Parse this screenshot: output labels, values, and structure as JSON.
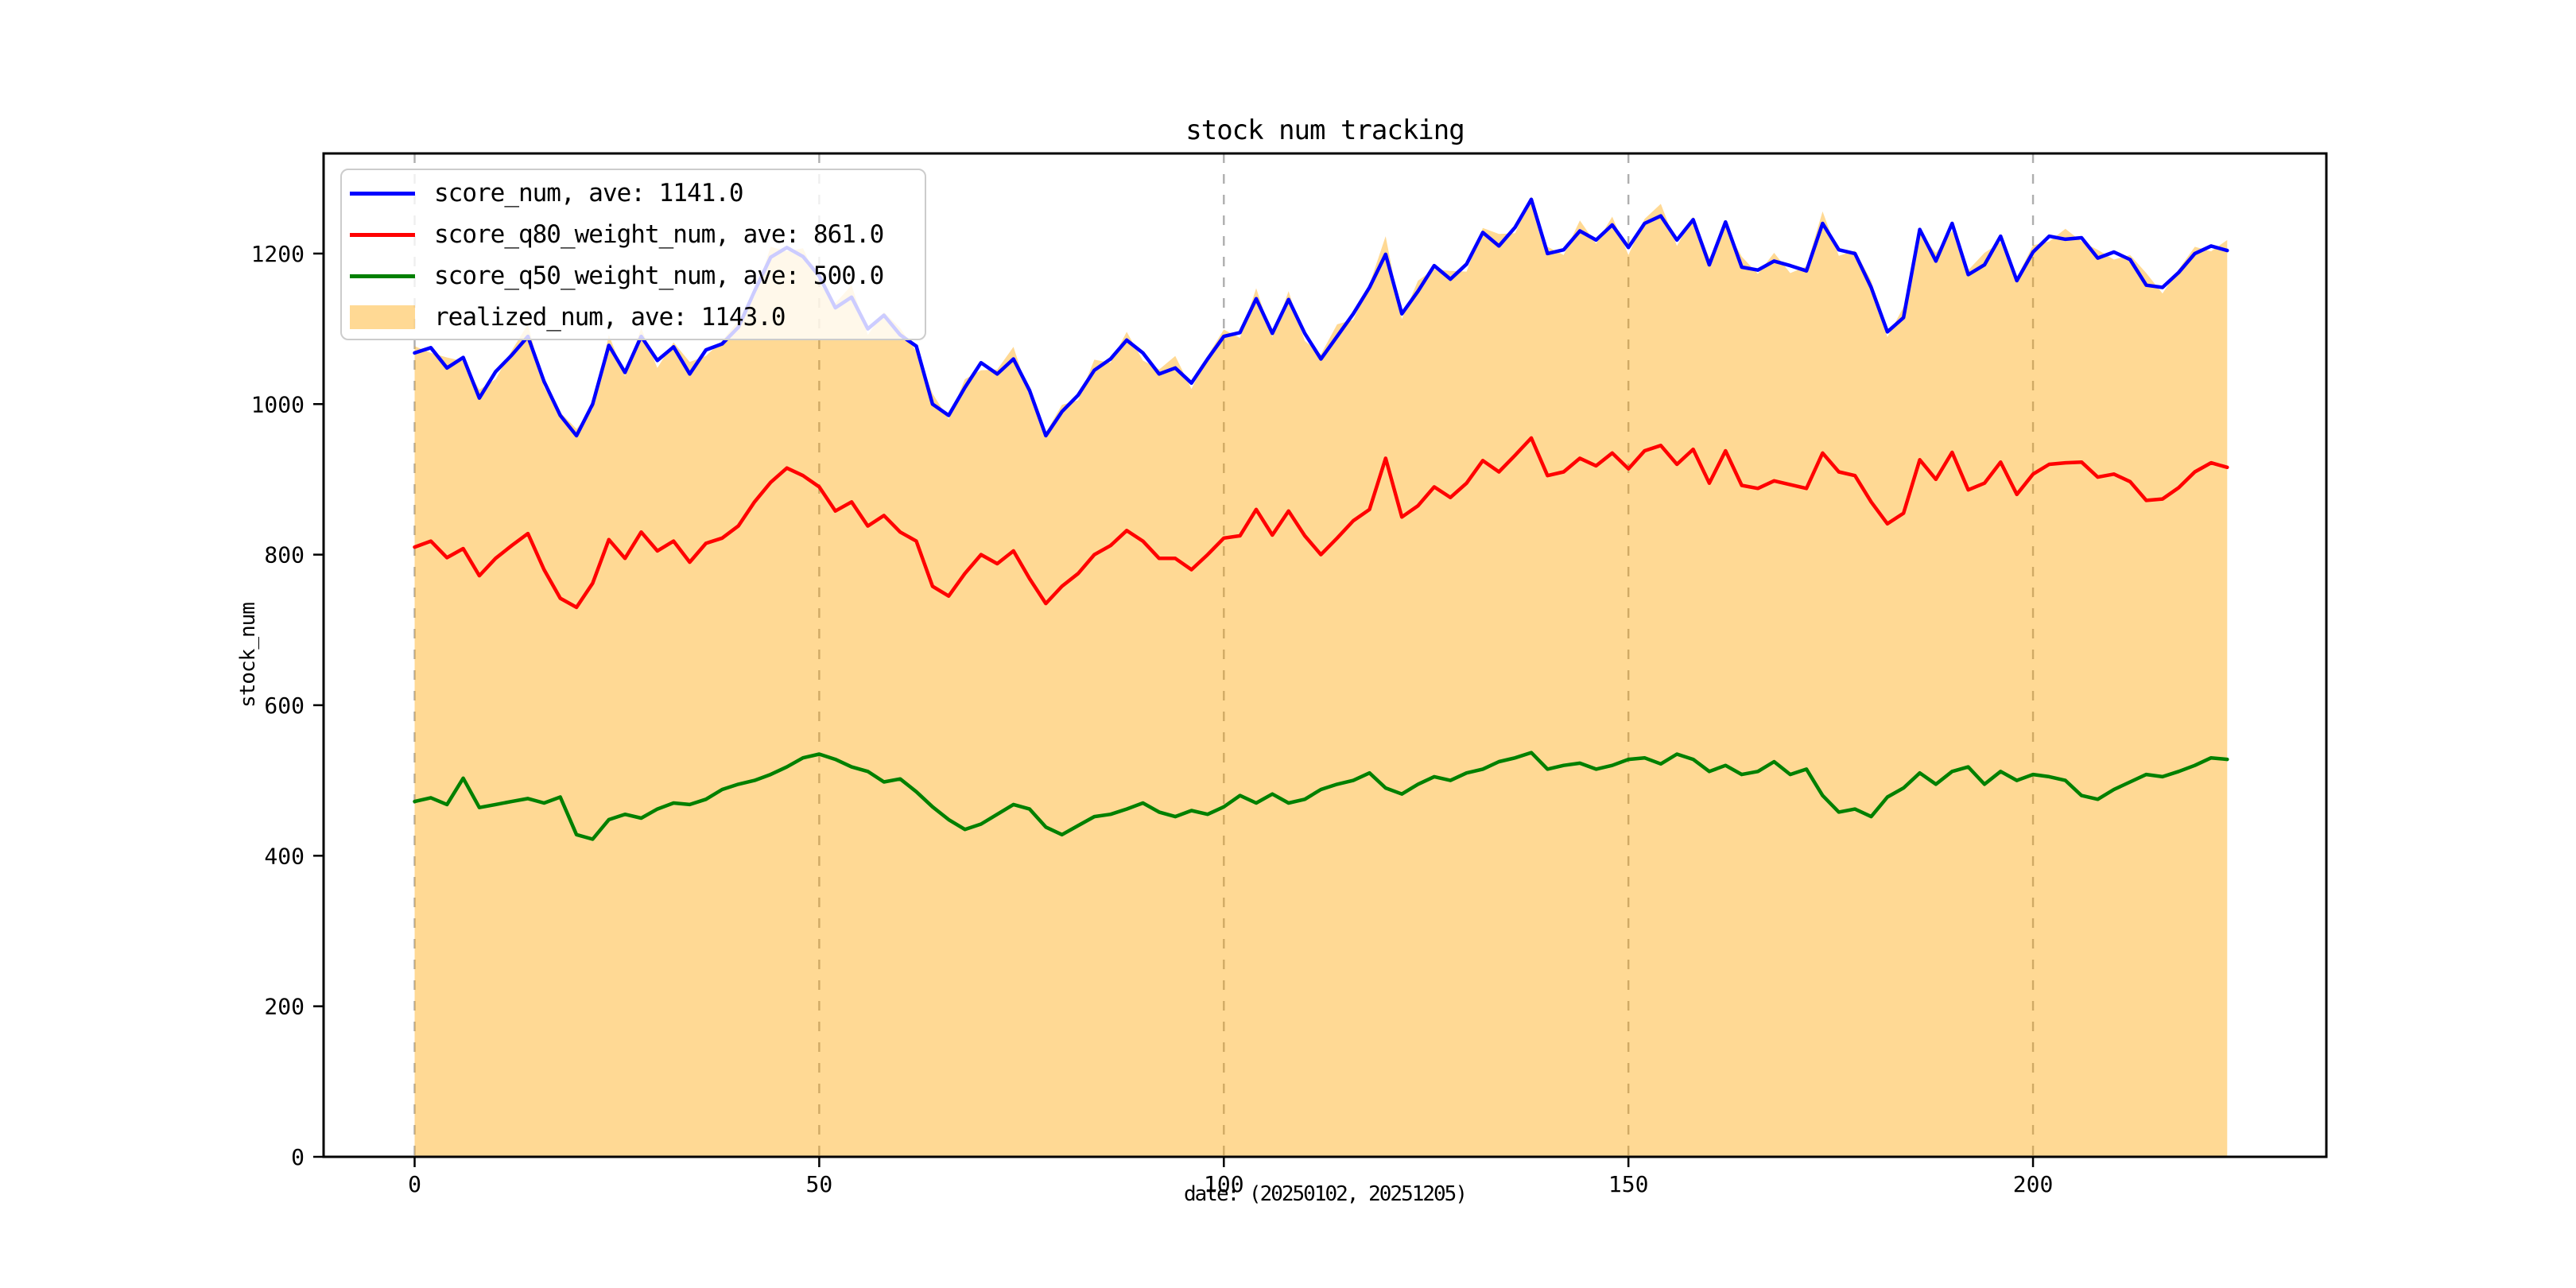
{
  "title": "stock num tracking",
  "axes": {
    "xlabel": "date: (20250102, 20251205)",
    "ylabel": "stock_num"
  },
  "colors": {
    "score_num": "#0000ff",
    "score_q80_weight_num": "#ff0000",
    "score_q50_weight_num": "#008000",
    "realized_num": "#ffa500",
    "grid": "#aeaeae",
    "axis": "#000000",
    "legend_border": "#cccccc",
    "text": "#000000"
  },
  "legend": {
    "position": "upper-left",
    "items": [
      {
        "label": "score_num, ave: 1141.0",
        "swatch": "line",
        "color": "#0000ff"
      },
      {
        "label": "score_q80_weight_num, ave: 861.0",
        "swatch": "line",
        "color": "#ff0000"
      },
      {
        "label": "score_q50_weight_num, ave: 500.0",
        "swatch": "line",
        "color": "#008000"
      },
      {
        "label": "realized_num, ave: 1143.0",
        "swatch": "patch",
        "color": "#ffa500",
        "alpha": 0.42
      }
    ]
  },
  "chart_data": {
    "type": "line",
    "title": "stock num tracking",
    "xlabel": "date: (20250102, 20251205)",
    "ylabel": "stock_num",
    "x_ticks": [
      0,
      50,
      100,
      150,
      200
    ],
    "y_ticks": [
      0,
      200,
      400,
      600,
      800,
      1000,
      1200
    ],
    "xlim": [
      -11.25,
      236.25
    ],
    "ylim": [
      0,
      1333
    ],
    "grid": "vertical-dashed",
    "legend_position": "upper-left",
    "x": [
      0,
      2,
      4,
      6,
      8,
      10,
      12,
      14,
      16,
      18,
      20,
      22,
      24,
      26,
      28,
      30,
      32,
      34,
      36,
      38,
      40,
      42,
      44,
      46,
      48,
      50,
      52,
      54,
      56,
      58,
      60,
      62,
      64,
      66,
      68,
      70,
      72,
      74,
      76,
      78,
      80,
      82,
      84,
      86,
      88,
      90,
      92,
      94,
      96,
      98,
      100,
      102,
      104,
      106,
      108,
      110,
      112,
      114,
      116,
      118,
      120,
      122,
      124,
      126,
      128,
      130,
      132,
      134,
      136,
      138,
      140,
      142,
      144,
      146,
      148,
      150,
      152,
      154,
      156,
      158,
      160,
      162,
      164,
      166,
      168,
      170,
      172,
      174,
      176,
      178,
      180,
      182,
      184,
      186,
      188,
      190,
      192,
      194,
      196,
      198,
      200,
      202,
      204,
      206,
      208,
      210,
      212,
      214,
      216,
      218,
      220,
      222,
      224
    ],
    "series": [
      {
        "name": "realized_num",
        "ave": 1143.0,
        "color": "#ffa500",
        "alpha": 0.42,
        "style": "area",
        "values": [
          1077,
          1068,
          1062,
          1057,
          1019,
          1033,
          1071,
          1106,
          1022,
          989,
          967,
          993,
          1092,
          1037,
          1101,
          1048,
          1082,
          1056,
          1064,
          1084,
          1111,
          1143,
          1209,
          1203,
          1207,
          1160,
          1134,
          1158,
          1092,
          1122,
          1101,
          1070,
          1014,
          980,
          1033,
          1045,
          1046,
          1076,
          1010,
          962,
          999,
          1005,
          1059,
          1055,
          1096,
          1058,
          1046,
          1064,
          1020,
          1064,
          1099,
          1088,
          1154,
          1089,
          1150,
          1084,
          1066,
          1106,
          1112,
          1159,
          1223,
          1113,
          1164,
          1179,
          1177,
          1176,
          1234,
          1226,
          1227,
          1276,
          1209,
          1198,
          1244,
          1213,
          1249,
          1198,
          1246,
          1266,
          1210,
          1249,
          1194,
          1235,
          1196,
          1173,
          1201,
          1174,
          1183,
          1256,
          1197,
          1204,
          1164,
          1089,
          1129,
          1227,
          1201,
          1230,
          1178,
          1201,
          1215,
          1168,
          1211,
          1216,
          1233,
          1216,
          1205,
          1192,
          1198,
          1174,
          1147,
          1179,
          1209,
          1203,
          1218
        ]
      },
      {
        "name": "score_num",
        "ave": 1141.0,
        "color": "#0000ff",
        "style": "line",
        "values": [
          1068,
          1075,
          1048,
          1062,
          1008,
          1043,
          1065,
          1090,
          1030,
          985,
          958,
          1000,
          1078,
          1042,
          1090,
          1058,
          1076,
          1040,
          1072,
          1080,
          1102,
          1150,
          1195,
          1208,
          1196,
          1170,
          1128,
          1142,
          1100,
          1118,
          1092,
          1077,
          1000,
          985,
          1022,
          1055,
          1040,
          1060,
          1018,
          958,
          990,
          1012,
          1045,
          1060,
          1085,
          1068,
          1040,
          1048,
          1028,
          1060,
          1090,
          1095,
          1140,
          1094,
          1139,
          1094,
          1060,
          1090,
          1120,
          1155,
          1199,
          1120,
          1150,
          1184,
          1166,
          1186,
          1228,
          1210,
          1235,
          1272,
          1200,
          1205,
          1230,
          1218,
          1238,
          1208,
          1240,
          1250,
          1218,
          1245,
          1185,
          1242,
          1182,
          1178,
          1190,
          1184,
          1177,
          1240,
          1205,
          1200,
          1155,
          1096,
          1115,
          1232,
          1190,
          1240,
          1172,
          1185,
          1223,
          1164,
          1202,
          1223,
          1219,
          1221,
          1194,
          1202,
          1192,
          1158,
          1155,
          1175,
          1200,
          1210,
          1204
        ]
      },
      {
        "name": "score_q80_weight_num",
        "ave": 861.0,
        "color": "#ff0000",
        "style": "line",
        "values": [
          810,
          818,
          796,
          808,
          772,
          795,
          812,
          828,
          780,
          742,
          730,
          762,
          820,
          795,
          830,
          805,
          818,
          790,
          815,
          822,
          838,
          870,
          896,
          915,
          905,
          890,
          858,
          870,
          838,
          852,
          830,
          818,
          758,
          745,
          775,
          800,
          788,
          805,
          768,
          735,
          758,
          775,
          800,
          812,
          832,
          818,
          795,
          795,
          780,
          800,
          822,
          825,
          860,
          826,
          858,
          825,
          800,
          822,
          845,
          860,
          928,
          850,
          865,
          890,
          876,
          895,
          925,
          910,
          932,
          955,
          905,
          910,
          928,
          918,
          935,
          914,
          938,
          945,
          920,
          940,
          895,
          938,
          892,
          888,
          898,
          893,
          888,
          935,
          910,
          905,
          870,
          841,
          855,
          926,
          900,
          936,
          886,
          895,
          923,
          880,
          907,
          920,
          922,
          923,
          903,
          907,
          897,
          872,
          874,
          889,
          910,
          922,
          916
        ]
      },
      {
        "name": "score_q50_weight_num",
        "ave": 500.0,
        "color": "#008000",
        "style": "line",
        "values": [
          472,
          477,
          468,
          503,
          464,
          468,
          472,
          476,
          470,
          478,
          428,
          422,
          448,
          455,
          450,
          462,
          470,
          468,
          475,
          488,
          495,
          500,
          508,
          518,
          530,
          535,
          528,
          518,
          512,
          498,
          502,
          485,
          465,
          448,
          435,
          442,
          455,
          468,
          462,
          438,
          428,
          440,
          452,
          455,
          462,
          470,
          458,
          452,
          460,
          455,
          465,
          480,
          470,
          482,
          470,
          475,
          488,
          495,
          500,
          510,
          490,
          482,
          495,
          505,
          500,
          510,
          515,
          525,
          530,
          537,
          515,
          520,
          523,
          515,
          520,
          528,
          530,
          522,
          535,
          528,
          512,
          520,
          508,
          512,
          525,
          508,
          515,
          480,
          458,
          462,
          452,
          478,
          490,
          510,
          495,
          512,
          518,
          495,
          512,
          500,
          508,
          505,
          500,
          480,
          475,
          488,
          498,
          508,
          505,
          512,
          520,
          530,
          528
        ]
      }
    ]
  }
}
